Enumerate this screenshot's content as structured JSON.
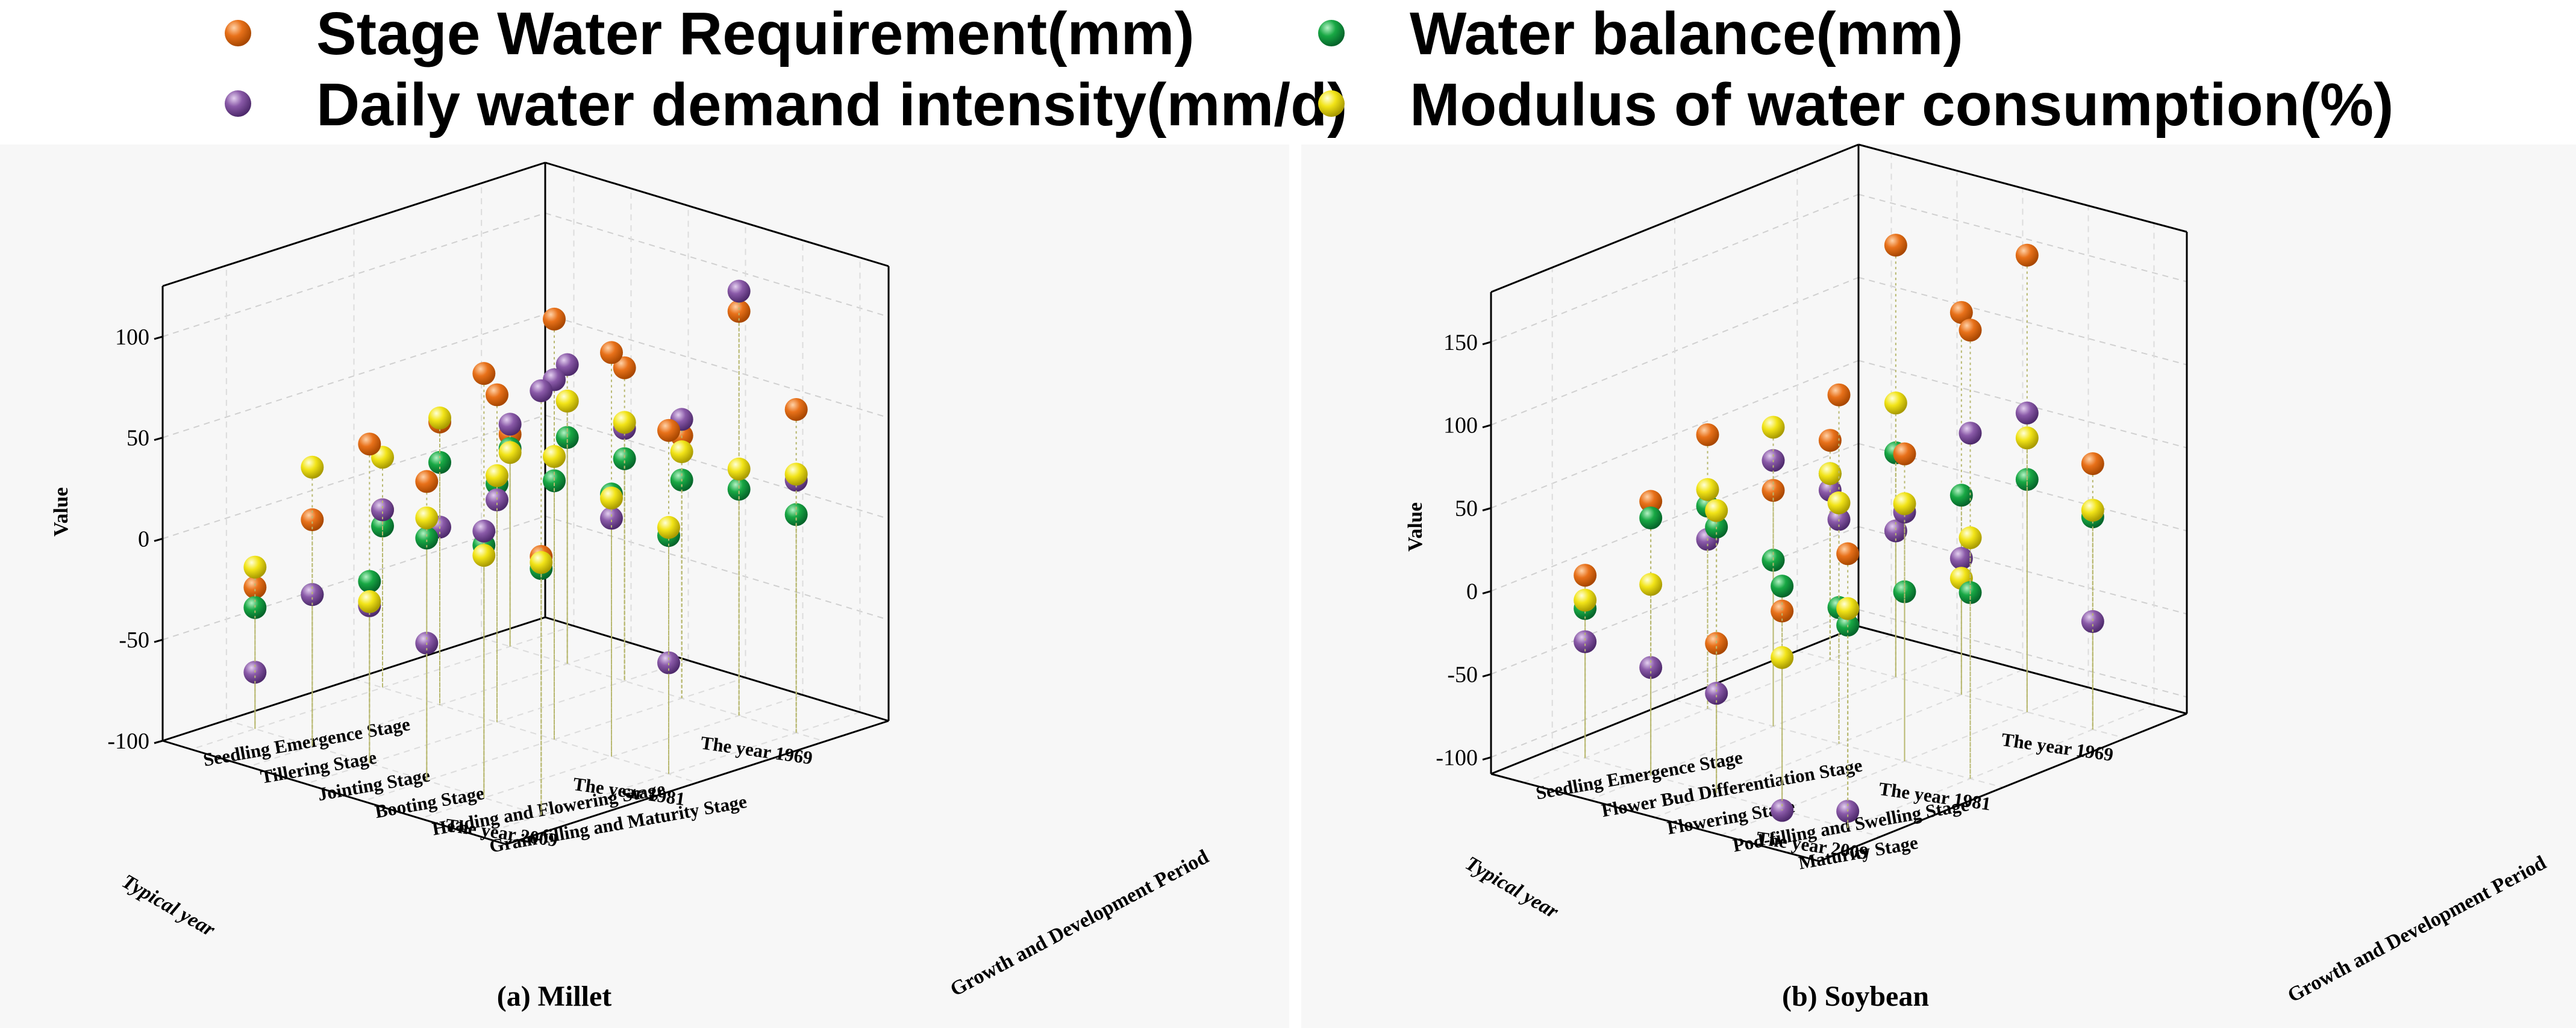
{
  "legend": [
    {
      "key": "swr",
      "label": "Stage Water Requirement(mm)",
      "color": "#e8711a"
    },
    {
      "key": "wb",
      "label": "Water balance(mm)",
      "color": "#18a844"
    },
    {
      "key": "dwdi",
      "label": "Daily water demand intensity(mm/d)",
      "color": "#8a5aa8"
    },
    {
      "key": "mwc",
      "label": "Modulus of water consumption(%)",
      "color": "#f2e418"
    }
  ],
  "chart_data": [
    {
      "type": "scatter3d",
      "caption": "(a) Millet",
      "zlabel": "Value",
      "xlabel": "Typical year",
      "ylabel": "Growth and Development Period",
      "zlim": [
        -100,
        125
      ],
      "z_ticks": [
        "100",
        "50",
        "0",
        "-50",
        "-100"
      ],
      "years": [
        "The year 1969",
        "The year 1981",
        "The year 2009"
      ],
      "stages": [
        "Seedling Emergence Stage",
        "Tillering Stage",
        "Jointing Stage",
        "Booting Stage",
        "Heading and Flowering Stage",
        "Grain-filling and Maturity Stage"
      ],
      "series": [
        {
          "key": "swr",
          "name": "Stage Water Requirement(mm)",
          "values": [
            [
              5,
              30,
              55,
              30,
              100,
              60
            ],
            [
              -12,
              40,
              62,
              108,
              100,
              70
            ],
            [
              -30,
              12,
              58,
              48,
              110,
              28
            ]
          ]
        },
        {
          "key": "wb",
          "name": "Water balance(mm)",
          "values": [
            [
              -2,
              12,
              10,
              8,
              12,
              8
            ],
            [
              -20,
              20,
              18,
              28,
              30,
              18
            ],
            [
              -40,
              -25,
              -10,
              20,
              25,
              22
            ]
          ]
        },
        {
          "key": "dwdi",
          "name": "Daily water demand intensity(mm/d)",
          "values": [
            [
              10,
              48,
              25,
              38,
              110,
              25
            ],
            [
              -12,
              -12,
              10,
              78,
              18,
              -45
            ],
            [
              -72,
              -25,
              -22,
              -32,
              32,
              110
            ]
          ]
        },
        {
          "key": "mwc",
          "name": "Modulus of water consumption(%)",
          "values": [
            [
              -4,
              30,
              28,
              22,
              22,
              28
            ],
            [
              14,
              42,
              22,
              40,
              28,
              22
            ],
            [
              -20,
              38,
              -20,
              30,
              20,
              25
            ]
          ]
        }
      ]
    },
    {
      "type": "scatter3d",
      "caption": "(b) Soybean",
      "zlabel": "Value",
      "xlabel": "Typical year",
      "ylabel": "Growth and Development Period",
      "zlim": [
        -110,
        180
      ],
      "z_ticks": [
        "150",
        "100",
        "50",
        "0",
        "-50",
        "-100"
      ],
      "years": [
        "The year 1969",
        "The year 1981",
        "The year 2009"
      ],
      "stages": [
        "Seedling Emergence Stage",
        "Flower Bud Differentiation Stage",
        "Flowering Stage",
        "Pod-filling and Swelling Stage",
        "Maturity Stage"
      ],
      "series": [
        {
          "key": "swr",
          "name": "Stage Water Requirement(mm)",
          "values": [
            [
              22,
              150,
              120,
              165,
              50
            ],
            [
              55,
              32,
              100,
              75,
              160
            ],
            [
              0,
              55,
              -20,
              10,
              55
            ]
          ]
        },
        {
          "key": "wb",
          "name": "Water balance(mm)",
          "values": [
            [
              2,
              25,
              10,
              30,
              18
            ],
            [
              12,
              -10,
              -28,
              -8,
              2
            ],
            [
              -20,
              45,
              50,
              25,
              12
            ]
          ]
        },
        {
          "key": "dwdi",
          "name": "Daily water demand intensity(mm/d)",
          "values": [
            [
              -8,
              -22,
              -28,
              70,
              -45
            ],
            [
              -8,
              50,
              25,
              40,
              98
            ],
            [
              -40,
              -45,
              -50,
              -110,
              -100
            ]
          ]
        },
        {
          "key": "mwc",
          "name": "Modulus of water consumption(%)",
          "values": [
            [
              2,
              55,
              -40,
              55,
              22
            ],
            [
              22,
              70,
              35,
              45,
              35
            ],
            [
              -15,
              5,
              60,
              -18,
              22
            ]
          ]
        }
      ]
    }
  ]
}
